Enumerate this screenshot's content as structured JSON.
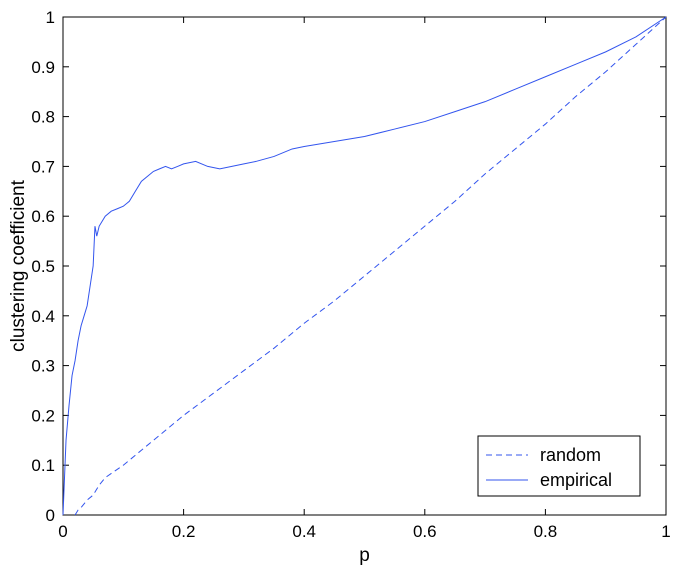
{
  "chart_data": {
    "type": "line",
    "title": "",
    "xlabel": "p",
    "ylabel": "clustering coefficient",
    "xlim": [
      0,
      1
    ],
    "ylim": [
      0,
      1
    ],
    "xticks": [
      "0",
      "0.2",
      "0.4",
      "0.6",
      "0.8",
      "1"
    ],
    "yticks": [
      "0",
      "0.1",
      "0.2",
      "0.3",
      "0.4",
      "0.5",
      "0.6",
      "0.7",
      "0.8",
      "0.9",
      "1"
    ],
    "grid": false,
    "legend_position": "bottom-right",
    "series": [
      {
        "name": "random",
        "style": "dashed",
        "color": "#3355ee",
        "x": [
          0.02,
          0.025,
          0.03,
          0.04,
          0.05,
          0.06,
          0.07,
          0.1,
          0.13,
          0.15,
          0.2,
          0.25,
          0.3,
          0.35,
          0.4,
          0.45,
          0.5,
          0.55,
          0.6,
          0.65,
          0.7,
          0.75,
          0.8,
          0.85,
          0.9,
          0.95,
          1.0
        ],
        "y": [
          0.0,
          0.01,
          0.015,
          0.03,
          0.04,
          0.06,
          0.075,
          0.1,
          0.13,
          0.15,
          0.2,
          0.245,
          0.29,
          0.335,
          0.385,
          0.43,
          0.48,
          0.53,
          0.58,
          0.63,
          0.685,
          0.735,
          0.785,
          0.84,
          0.89,
          0.945,
          1.0
        ]
      },
      {
        "name": "empirical",
        "style": "solid",
        "color": "#3355ee",
        "x": [
          0.0,
          0.005,
          0.01,
          0.015,
          0.02,
          0.025,
          0.03,
          0.035,
          0.04,
          0.045,
          0.05,
          0.053,
          0.056,
          0.06,
          0.07,
          0.08,
          0.09,
          0.1,
          0.11,
          0.12,
          0.13,
          0.14,
          0.15,
          0.16,
          0.17,
          0.18,
          0.19,
          0.2,
          0.22,
          0.24,
          0.26,
          0.28,
          0.3,
          0.32,
          0.35,
          0.38,
          0.4,
          0.45,
          0.5,
          0.55,
          0.6,
          0.65,
          0.7,
          0.75,
          0.8,
          0.85,
          0.9,
          0.95,
          1.0
        ],
        "y": [
          0.0,
          0.15,
          0.22,
          0.28,
          0.31,
          0.35,
          0.38,
          0.4,
          0.42,
          0.46,
          0.5,
          0.58,
          0.56,
          0.58,
          0.6,
          0.61,
          0.615,
          0.62,
          0.63,
          0.65,
          0.67,
          0.68,
          0.69,
          0.695,
          0.7,
          0.695,
          0.7,
          0.705,
          0.71,
          0.7,
          0.695,
          0.7,
          0.705,
          0.71,
          0.72,
          0.735,
          0.74,
          0.75,
          0.76,
          0.775,
          0.79,
          0.81,
          0.83,
          0.855,
          0.88,
          0.905,
          0.93,
          0.96,
          1.0
        ]
      }
    ]
  }
}
